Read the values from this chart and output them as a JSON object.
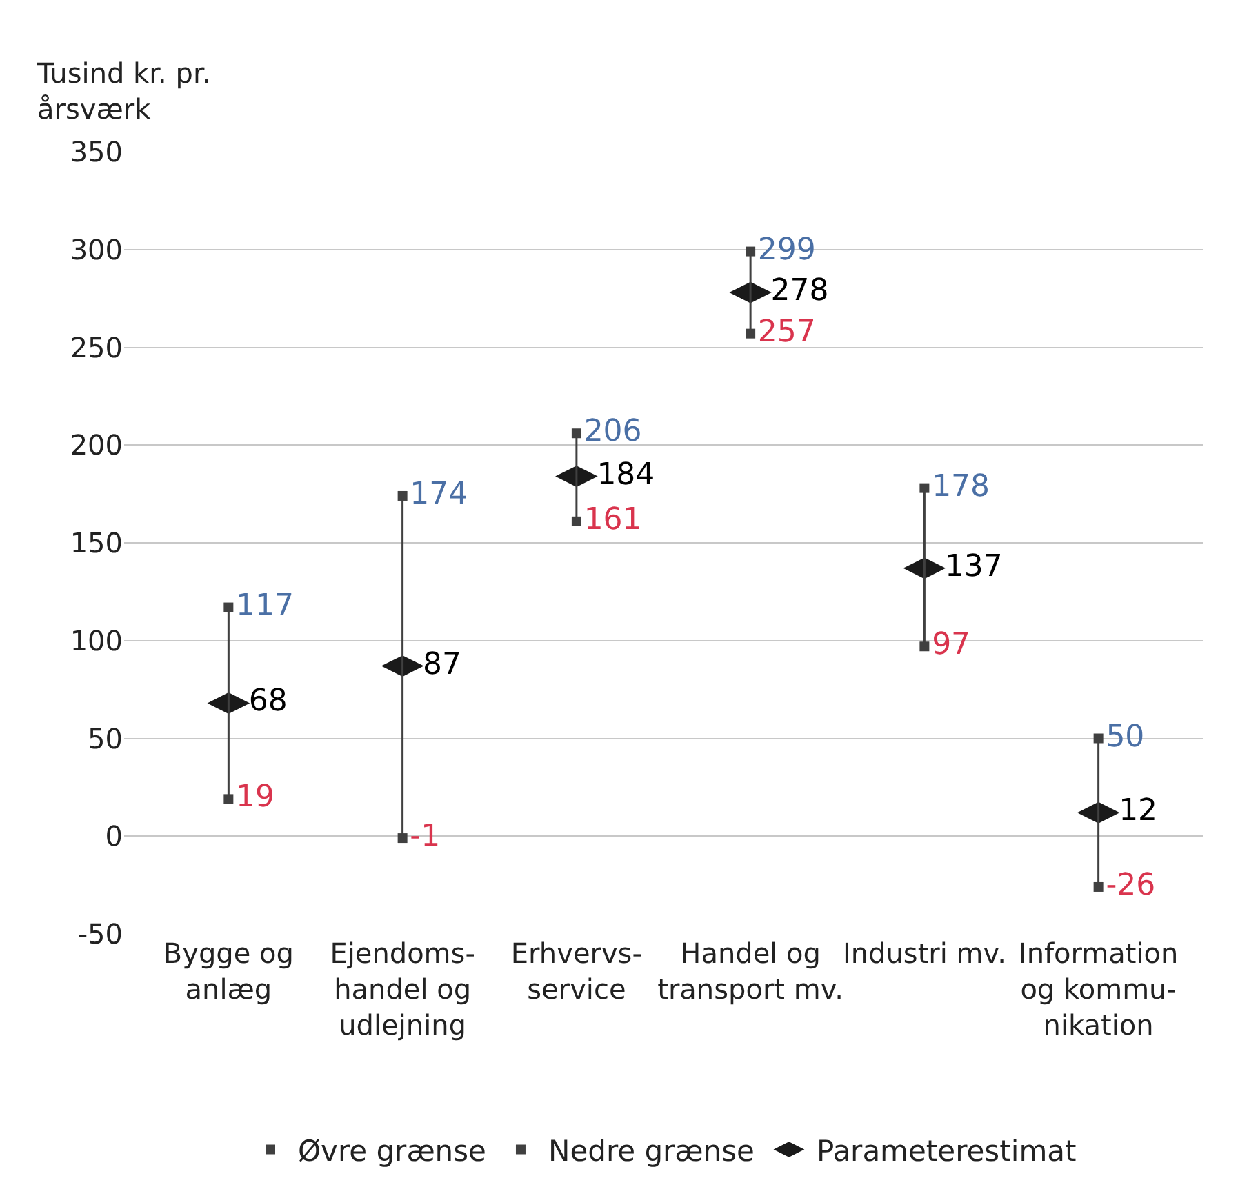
{
  "chart_data": {
    "type": "scatter",
    "ylabel": "Tusind kr. pr.\nårsværk",
    "categories": [
      "Bygge og\nanlæg",
      "Ejendoms-\nhandel og\nudlejning",
      "Erhvervs-\nservice",
      "Handel og\ntransport mv.",
      "Industri mv.",
      "Information\nog kommu-\nnikation"
    ],
    "series": [
      {
        "name": "Øvre grænse",
        "color": "#404040",
        "values": [
          117,
          174,
          206,
          299,
          178,
          50
        ]
      },
      {
        "name": "Nedre grænse",
        "color": "#404040",
        "values": [
          19,
          -1,
          161,
          257,
          97,
          -26
        ]
      },
      {
        "name": "Parameterestimat",
        "color": "#1a1a1a",
        "values": [
          68,
          87,
          184,
          278,
          137,
          12
        ]
      }
    ],
    "ylim": [
      -50,
      350
    ],
    "yticks": [
      -50,
      0,
      50,
      100,
      150,
      200,
      250,
      300,
      350
    ],
    "grid": "y",
    "legend": "bottom",
    "data_labels": true
  }
}
